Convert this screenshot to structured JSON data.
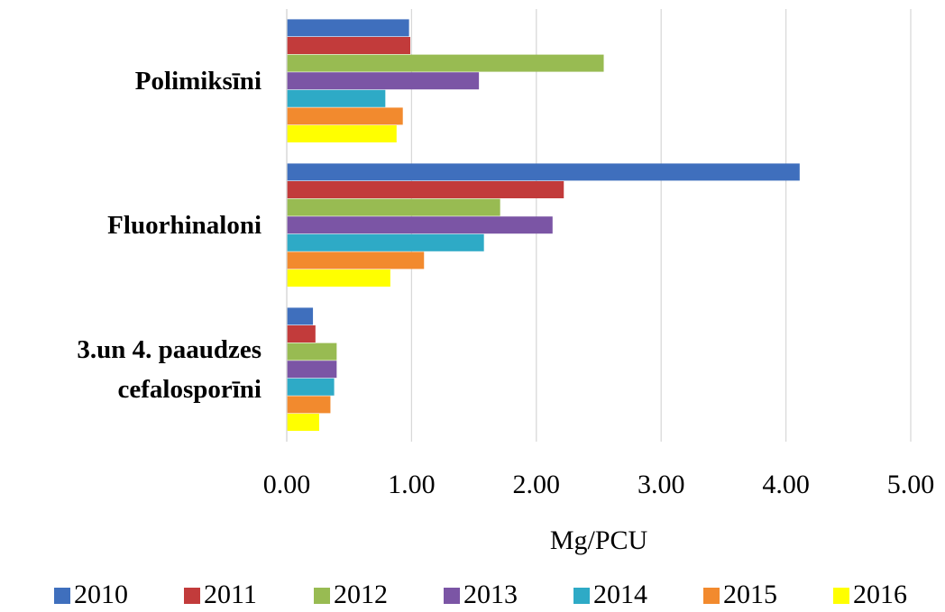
{
  "chart_data": {
    "type": "hbar",
    "xlabel": "Mg/PCU",
    "categories": [
      "Polimiksīni",
      "Fluorhinaloni",
      "3.un 4. paaudzes cefalosporīni"
    ],
    "series": [
      {
        "name": "2010",
        "color": "#3f6fbd",
        "values": [
          0.98,
          4.11,
          0.21
        ]
      },
      {
        "name": "2011",
        "color": "#c23b3b",
        "values": [
          0.99,
          2.22,
          0.23
        ]
      },
      {
        "name": "2012",
        "color": "#98bb52",
        "values": [
          2.54,
          1.71,
          0.4
        ]
      },
      {
        "name": "2013",
        "color": "#7b55a5",
        "values": [
          1.54,
          2.13,
          0.4
        ]
      },
      {
        "name": "2014",
        "color": "#2eaac6",
        "values": [
          0.79,
          1.58,
          0.38
        ]
      },
      {
        "name": "2015",
        "color": "#f28a2e",
        "values": [
          0.93,
          1.1,
          0.35
        ]
      },
      {
        "name": "2016",
        "color": "#ffff00",
        "values": [
          0.88,
          0.83,
          0.26
        ]
      }
    ],
    "xlim": [
      0,
      5
    ],
    "xticks": [
      {
        "value": 0,
        "label": "0.00"
      },
      {
        "value": 1,
        "label": "1.00"
      },
      {
        "value": 2,
        "label": "2.00"
      },
      {
        "value": 3,
        "label": "3.00"
      },
      {
        "value": 4,
        "label": "4.00"
      },
      {
        "value": 5,
        "label": "5.00"
      }
    ],
    "grid": true,
    "legend": "bottom"
  }
}
